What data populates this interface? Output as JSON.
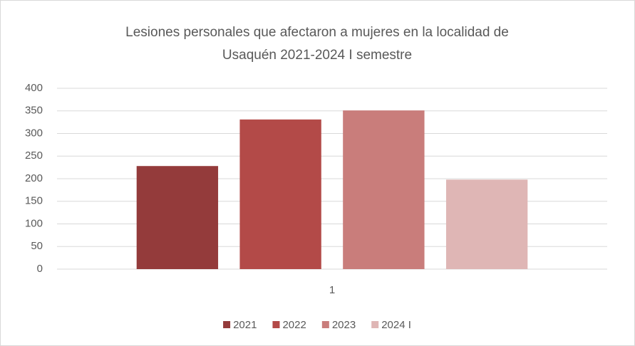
{
  "chart_data": {
    "type": "bar",
    "title": [
      "Lesiones personales que afectaron a mujeres en la localidad de",
      "Usaquén 2021-2024 I semestre"
    ],
    "categories": [
      "1"
    ],
    "series": [
      {
        "name": "2021",
        "color": "#943b3b",
        "values": [
          228
        ]
      },
      {
        "name": "2022",
        "color": "#b34a48",
        "values": [
          331
        ]
      },
      {
        "name": "2023",
        "color": "#c97d7b",
        "values": [
          351
        ]
      },
      {
        "name": "2024 I",
        "color": "#dfb6b5",
        "values": [
          198
        ]
      }
    ],
    "ylim": [
      0,
      400
    ],
    "yticks": [
      0,
      50,
      100,
      150,
      200,
      250,
      300,
      350,
      400
    ],
    "grid": true,
    "legend": "bottom"
  }
}
